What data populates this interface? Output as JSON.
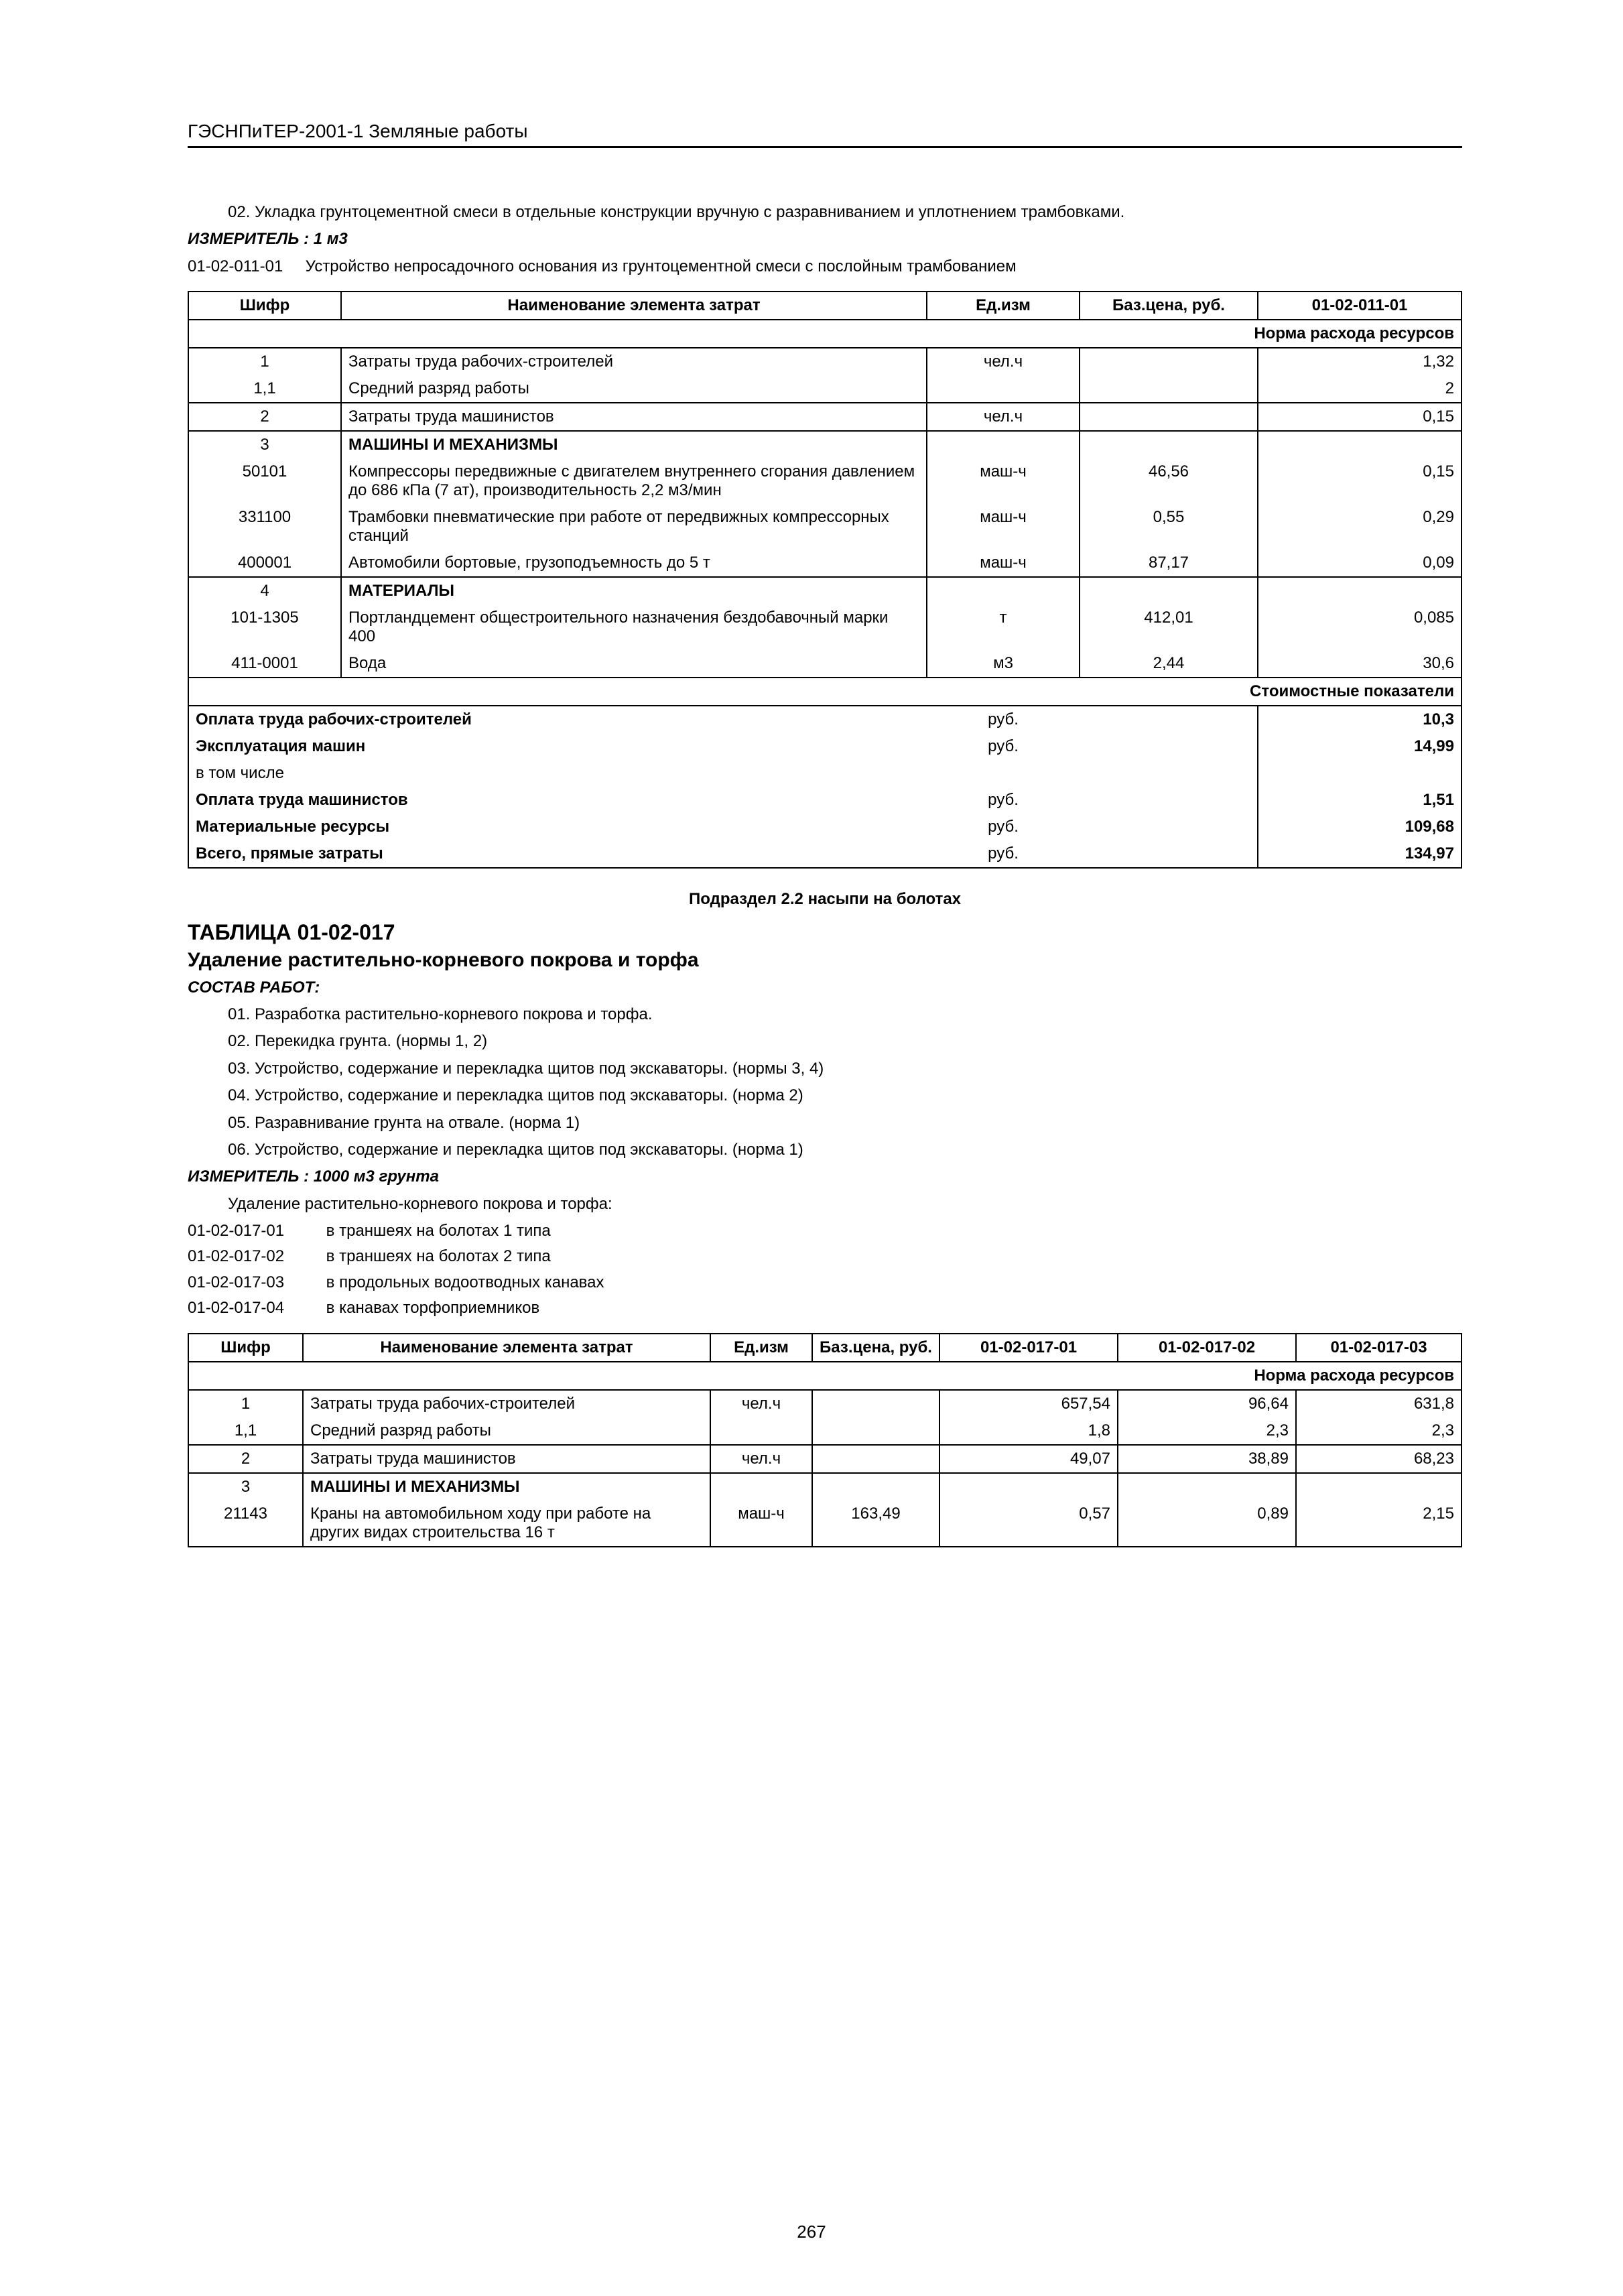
{
  "header": "ГЭСНПиТЕР-2001-1 Земляные работы",
  "intro": {
    "line02": "02. Укладка грунтоцементной смеси в отдельные конструкции вручную с разравниванием и уплотнением трамбовками.",
    "measLabel": "ИЗМЕРИТЕЛЬ :",
    "measValue": "1 м3",
    "code": "01-02-011-01",
    "codeDesc": "Устройство непросадочного основания из грунтоцементной смеси с послойным трамбованием"
  },
  "t1": {
    "headers": [
      "Шифр",
      "Наименование элемента затрат",
      "Ед.изм",
      "Баз.цена, руб.",
      "01-02-011-01"
    ],
    "normHeader": "Норма расхода ресурсов",
    "rows": [
      [
        "1",
        "Затраты труда рабочих-строителей",
        "чел.ч",
        "",
        "1,32"
      ],
      [
        "1,1",
        "Средний разряд работы",
        "",
        "",
        "2"
      ],
      [
        "2",
        "Затраты труда машинистов",
        "чел.ч",
        "",
        "0,15"
      ],
      [
        "3",
        "МАШИНЫ И МЕХАНИЗМЫ",
        "",
        "",
        ""
      ],
      [
        "50101",
        "Компрессоры передвижные с двигателем внутреннего сгорания давлением до 686 кПа (7 ат), производительность 2,2 м3/мин",
        "маш-ч",
        "46,56",
        "0,15"
      ],
      [
        "331100",
        "Трамбовки пневматические при работе от передвижных компрессорных станций",
        "маш-ч",
        "0,55",
        "0,29"
      ],
      [
        "400001",
        "Автомобили бортовые, грузоподъемность до 5 т",
        "маш-ч",
        "87,17",
        "0,09"
      ],
      [
        "4",
        "МАТЕРИАЛЫ",
        "",
        "",
        ""
      ],
      [
        "101-1305",
        "Портландцемент общестроительного назначения бездобавочный марки 400",
        "т",
        "412,01",
        "0,085"
      ],
      [
        "411-0001",
        "Вода",
        "м3",
        "2,44",
        "30,6"
      ]
    ],
    "costHeader": "Стоимостные показатели",
    "costs": [
      [
        "Оплата труда рабочих-строителей",
        "руб.",
        "10,3"
      ],
      [
        "Эксплуатация машин",
        "руб.",
        "14,99"
      ],
      [
        "в том числе",
        "",
        ""
      ],
      [
        "Оплата труда машинистов",
        "руб.",
        "1,51"
      ],
      [
        "Материальные ресурсы",
        "руб.",
        "109,68"
      ],
      [
        "Всего, прямые затраты",
        "руб.",
        "134,97"
      ]
    ]
  },
  "subsection": "Подраздел 2.2 насыпи на болотах",
  "t2meta": {
    "tableNum": "ТАБЛИЦА 01-02-017",
    "title": "Удаление растительно-корневого покрова и торфа",
    "sostav": "СОСТАВ РАБОТ:",
    "works": [
      "01. Разработка растительно-корневого покрова и торфа.",
      "02. Перекидка грунта. (нормы 1, 2)",
      "03. Устройство, содержание и перекладка щитов под экскаваторы. (нормы 3, 4)",
      "04. Устройство, содержание и перекладка щитов под экскаваторы. (норма 2)",
      "05. Разравнивание грунта на отвале. (норма 1)",
      "06. Устройство, содержание и перекладка щитов под экскаваторы. (норма 1)"
    ],
    "measLabel": "ИЗМЕРИТЕЛЬ :",
    "measValue": "1000 м3 грунта",
    "lead": "Удаление растительно-корневого покрова и торфа:",
    "codes": [
      [
        "01-02-017-01",
        "в траншеях на болотах 1 типа"
      ],
      [
        "01-02-017-02",
        "в траншеях на болотах 2 типа"
      ],
      [
        "01-02-017-03",
        "в продольных водоотводных канавах"
      ],
      [
        "01-02-017-04",
        "в канавах торфоприемников"
      ]
    ]
  },
  "t2": {
    "headers": [
      "Шифр",
      "Наименование элемента затрат",
      "Ед.изм",
      "Баз.цена, руб.",
      "01-02-017-01",
      "01-02-017-02",
      "01-02-017-03"
    ],
    "normHeader": "Норма расхода ресурсов",
    "rows": [
      [
        "1",
        "Затраты труда рабочих-строителей",
        "чел.ч",
        "",
        "657,54",
        "96,64",
        "631,8"
      ],
      [
        "1,1",
        "Средний разряд работы",
        "",
        "",
        "1,8",
        "2,3",
        "2,3"
      ],
      [
        "2",
        "Затраты труда машинистов",
        "чел.ч",
        "",
        "49,07",
        "38,89",
        "68,23"
      ],
      [
        "3",
        "МАШИНЫ И МЕХАНИЗМЫ",
        "",
        "",
        "",
        "",
        ""
      ],
      [
        "21143",
        "Краны на автомобильном ходу при работе на других видах строительства 16 т",
        "маш-ч",
        "163,49",
        "0,57",
        "0,89",
        "2,15"
      ]
    ]
  },
  "pageNum": "267",
  "colWidths": {
    "t1": [
      "12%",
      "46%",
      "12%",
      "14%",
      "16%"
    ],
    "t2": [
      "9%",
      "32%",
      "8%",
      "10%",
      "14%",
      "14%",
      "13%"
    ]
  }
}
